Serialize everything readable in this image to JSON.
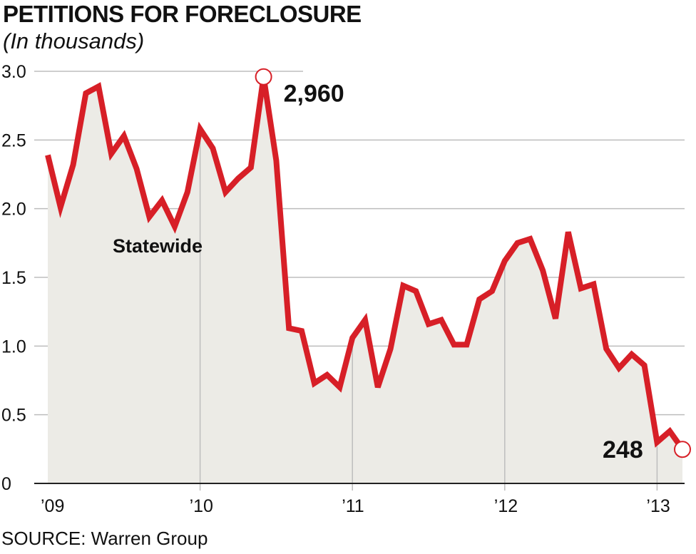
{
  "chart_data": {
    "type": "area",
    "title": "PETITIONS FOR FORECLOSURE",
    "subtitle": "(In thousands)",
    "source": "SOURCE: Warren Group",
    "series_label": "Statewide",
    "ylim": [
      0,
      3.0
    ],
    "yticks": [
      0,
      0.5,
      1.0,
      1.5,
      2.0,
      2.5,
      3.0
    ],
    "ytick_labels": [
      "0",
      "0.5",
      "1.0",
      "1.5",
      "2.0",
      "2.5",
      "3.0"
    ],
    "xticks": [
      {
        "label": "’09",
        "x": 0
      },
      {
        "label": "’10",
        "x": 12
      },
      {
        "label": "’11",
        "x": 24
      },
      {
        "label": "’12",
        "x": 36
      },
      {
        "label": "’13",
        "x": 48
      }
    ],
    "grid": true,
    "colors": {
      "line": "#d71f27",
      "fill": "#ecebe6",
      "grid": "#bdbdbd"
    },
    "values": [
      2.39,
      2.01,
      2.32,
      2.84,
      2.89,
      2.4,
      2.53,
      2.29,
      1.94,
      2.06,
      1.87,
      2.12,
      2.58,
      2.44,
      2.12,
      2.22,
      2.3,
      2.96,
      2.35,
      1.13,
      1.11,
      0.73,
      0.79,
      0.7,
      1.06,
      1.19,
      0.7,
      0.98,
      1.44,
      1.4,
      1.16,
      1.19,
      1.01,
      1.01,
      1.34,
      1.4,
      1.62,
      1.75,
      1.78,
      1.55,
      1.2,
      1.83,
      1.42,
      1.45,
      0.98,
      0.84,
      0.94,
      0.86,
      0.3,
      0.38,
      0.25
    ],
    "x_start": 0,
    "annotations": [
      {
        "text": "2,960",
        "x": 17,
        "y": 2.96,
        "marker": true
      },
      {
        "text": "248",
        "x": 50,
        "y": 0.248,
        "marker": true
      }
    ]
  }
}
